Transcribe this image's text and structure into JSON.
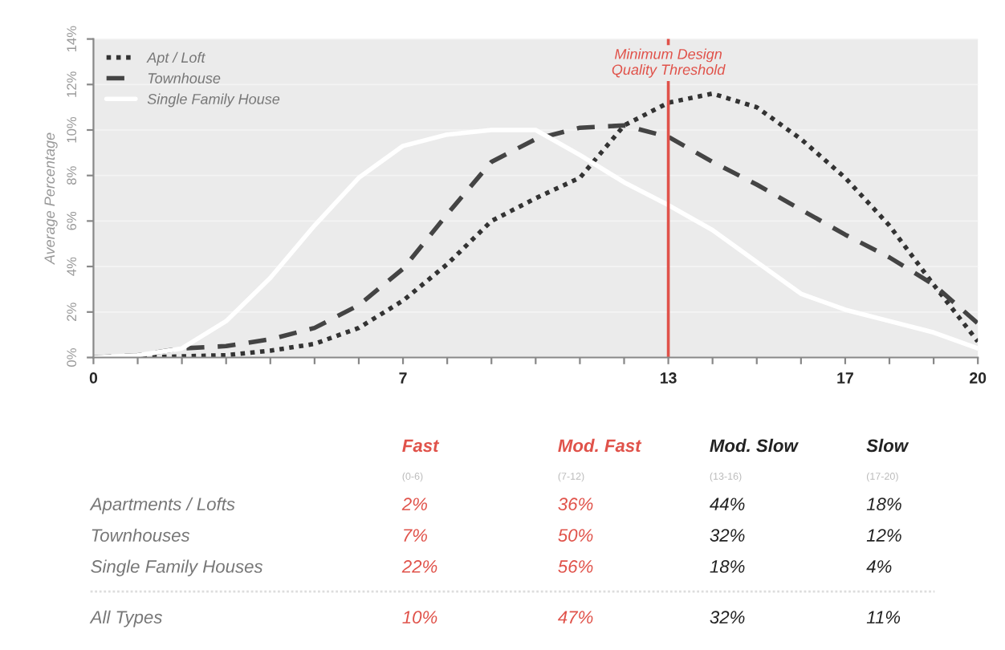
{
  "chart_data": {
    "type": "line",
    "ylabel": "Average Percentage",
    "xlim": [
      0,
      20
    ],
    "ylim": [
      0,
      14
    ],
    "xticks": [
      0,
      {
        "value": 1,
        "label": null
      },
      {
        "value": 2,
        "label": null
      },
      {
        "value": 3,
        "label": null
      },
      {
        "value": 4,
        "label": null
      },
      {
        "value": 5,
        "label": null
      },
      {
        "value": 6,
        "label": null
      },
      7,
      {
        "value": 8,
        "label": null
      },
      {
        "value": 9,
        "label": null
      },
      {
        "value": 10,
        "label": null
      },
      {
        "value": 11,
        "label": null
      },
      {
        "value": 12,
        "label": null
      },
      13,
      {
        "value": 14,
        "label": null
      },
      {
        "value": 15,
        "label": null
      },
      {
        "value": 16,
        "label": null
      },
      17,
      {
        "value": 18,
        "label": null
      },
      {
        "value": 19,
        "label": null
      },
      20
    ],
    "yticks": [
      {
        "value": 0,
        "label": "0%"
      },
      {
        "value": 2,
        "label": "2%"
      },
      {
        "value": 4,
        "label": "4%"
      },
      {
        "value": 6,
        "label": "6%"
      },
      {
        "value": 8,
        "label": "8%"
      },
      {
        "value": 10,
        "label": "10%"
      },
      {
        "value": 12,
        "label": "12%"
      },
      {
        "value": 14,
        "label": "14%"
      }
    ],
    "x": [
      0,
      1,
      2,
      3,
      4,
      5,
      6,
      7,
      8,
      9,
      10,
      11,
      12,
      13,
      14,
      15,
      16,
      17,
      18,
      19,
      20
    ],
    "series": [
      {
        "name": "Apt / Loft",
        "color": "#333333",
        "line_style": "dotted",
        "values": [
          0,
          0,
          0.05,
          0.1,
          0.3,
          0.6,
          1.3,
          2.5,
          4.1,
          6.0,
          7.0,
          7.9,
          10.2,
          11.2,
          11.6,
          11.0,
          9.6,
          7.9,
          5.8,
          3.2,
          0.7
        ]
      },
      {
        "name": "Townhouse",
        "color": "#444444",
        "line_style": "dashed",
        "values": [
          0,
          0.1,
          0.4,
          0.5,
          0.8,
          1.3,
          2.3,
          3.9,
          6.3,
          8.6,
          9.6,
          10.1,
          10.2,
          9.7,
          8.6,
          7.6,
          6.5,
          5.4,
          4.4,
          3.2,
          1.5
        ]
      },
      {
        "name": "Single Family House",
        "color": "#ffffff",
        "line_style": "solid",
        "values": [
          0,
          0.1,
          0.4,
          1.6,
          3.5,
          5.8,
          7.9,
          9.3,
          9.8,
          10.0,
          10.0,
          8.9,
          7.7,
          6.7,
          5.6,
          4.2,
          2.8,
          2.1,
          1.6,
          1.1,
          0.4
        ]
      }
    ],
    "ref_lines": [
      {
        "axis": "x",
        "value": 13,
        "label": "Minimum Design\nQuality Threshold",
        "color": "#e0524a"
      }
    ],
    "grid": "y",
    "legend": "top left",
    "annotations": [
      "Fast",
      "Mod. Fast",
      "Mod. Slow",
      "Slow",
      "(0-6)",
      "(7-12)",
      "(13-16)",
      "(17-20)",
      "Apartments / Lofts",
      "2%",
      "36%",
      "44%",
      "18%",
      "Townhouses",
      "7%",
      "50%",
      "32%",
      "12%",
      "Single Family Houses",
      "22%",
      "56%",
      "18%",
      "4%",
      "All Types",
      "10%",
      "47%",
      "32%",
      "11%"
    ]
  }
}
